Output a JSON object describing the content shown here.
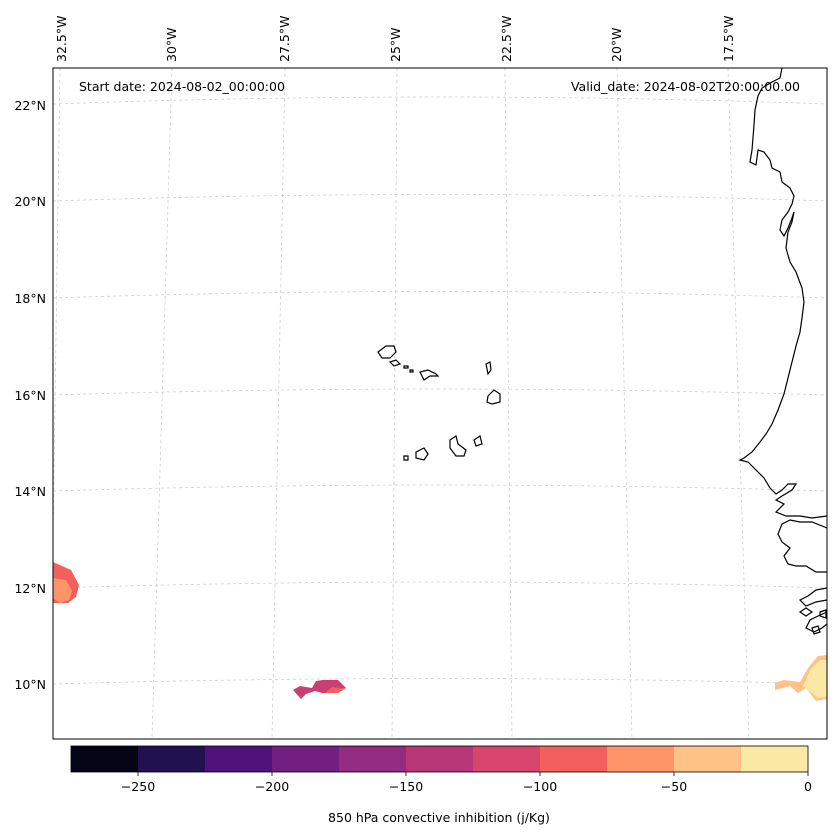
{
  "header": {
    "start_date": "Start date: 2024-08-02_00:00:00",
    "valid_date": "Valid_date: 2024-08-02T20:00:00.00"
  },
  "map": {
    "lon_labels": [
      "32.5°W",
      "30°W",
      "27.5°W",
      "25°W",
      "22.5°W",
      "20°W",
      "17.5°W"
    ],
    "lat_labels": [
      "22°N",
      "20°N",
      "18°N",
      "16°N",
      "14°N",
      "12°N",
      "10°N"
    ],
    "field_colors": {
      "c1": "#dd4968",
      "c2": "#f1605d",
      "c3": "#fd9568",
      "c4": "#fec287",
      "c5": "#fce8a5",
      "c6": "#cb3e71"
    }
  },
  "colorbar": {
    "label": "850 hPa convective inhibition (j/Kg)",
    "tick_labels": [
      "−250",
      "−200",
      "−150",
      "−100",
      "−50",
      "0"
    ],
    "range": [
      -275,
      0
    ],
    "colors": [
      "#050417",
      "#221150",
      "#4f127b",
      "#721f81",
      "#932b80",
      "#b73779",
      "#d8456c",
      "#f1605d",
      "#fd9568",
      "#fec287",
      "#fce8a5"
    ]
  }
}
